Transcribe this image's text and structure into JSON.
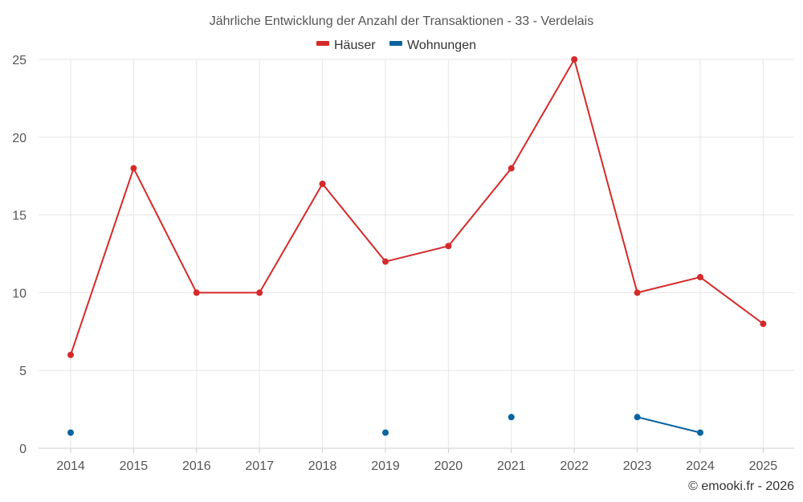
{
  "chart_data": {
    "type": "line",
    "title": "Jährliche Entwicklung der Anzahl der Transaktionen - 33 - Verdelais",
    "categories": [
      "2014",
      "2015",
      "2016",
      "2017",
      "2018",
      "2019",
      "2020",
      "2021",
      "2022",
      "2023",
      "2024",
      "2025"
    ],
    "series": [
      {
        "name": "Häuser",
        "color": "#d42a2a",
        "values": [
          6,
          18,
          10,
          10,
          17,
          12,
          13,
          18,
          25,
          10,
          11,
          8
        ]
      },
      {
        "name": "Wohnungen",
        "color": "#0a64a0",
        "values": [
          1,
          null,
          null,
          null,
          null,
          1,
          null,
          2,
          null,
          2,
          1,
          null
        ]
      }
    ],
    "ylim": [
      0,
      25
    ],
    "yticks": [
      "0",
      "5",
      "10",
      "15",
      "20",
      "25"
    ],
    "xlabel": "",
    "ylabel": "",
    "grid": true,
    "legend": "top-center"
  },
  "credit": "© emooki.fr - 2026"
}
